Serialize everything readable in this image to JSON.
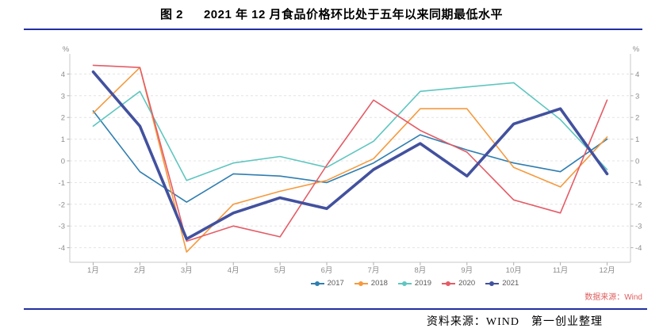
{
  "header": {
    "figure_label": "图 2",
    "title": "2021 年 12 月食品价格环比处于五年以来同期最低水平"
  },
  "chart_data": {
    "type": "line",
    "title": "2021 年 12 月食品价格环比处于五年以来同期最低水平",
    "ylabel_left": "%",
    "ylabel_right": "%",
    "categories": [
      "1月",
      "2月",
      "3月",
      "4月",
      "5月",
      "6月",
      "7月",
      "8月",
      "9月",
      "10月",
      "11月",
      "12月"
    ],
    "y_ticks": [
      4,
      3,
      2,
      1,
      0,
      -1,
      -2,
      -3,
      -4
    ],
    "ylim": [
      -4.7,
      5.0
    ],
    "grid": "horizontal dashed",
    "legend_position": "bottom center",
    "series": [
      {
        "name": "2017",
        "color": "#2f7eb0",
        "line_width": 1.6,
        "values": [
          2.3,
          -0.5,
          -1.9,
          -0.6,
          -0.7,
          -1.0,
          -0.1,
          1.2,
          0.5,
          -0.1,
          -0.5,
          1.0
        ]
      },
      {
        "name": "2018",
        "color": "#f59a3e",
        "line_width": 1.6,
        "values": [
          2.2,
          4.3,
          -4.2,
          -2.0,
          -1.4,
          -0.9,
          0.1,
          2.4,
          2.4,
          -0.3,
          -1.2,
          1.1
        ]
      },
      {
        "name": "2019",
        "color": "#5fc6c0",
        "line_width": 1.6,
        "values": [
          1.6,
          3.2,
          -0.9,
          -0.1,
          0.2,
          -0.3,
          0.9,
          3.2,
          3.4,
          3.6,
          1.9,
          -0.4
        ]
      },
      {
        "name": "2020",
        "color": "#e45c66",
        "line_width": 1.6,
        "values": [
          4.4,
          4.3,
          -3.7,
          -3.0,
          -3.5,
          -0.2,
          2.8,
          1.4,
          0.4,
          -1.8,
          -2.4,
          2.8
        ]
      },
      {
        "name": "2021",
        "color": "#42519e",
        "line_width": 3.6,
        "values": [
          4.1,
          1.6,
          -3.6,
          -2.4,
          -1.7,
          -2.2,
          -0.4,
          0.8,
          -0.7,
          1.7,
          2.4,
          -0.6
        ]
      }
    ],
    "source_note": "数据来源：Wind"
  },
  "footer": {
    "source": "资料来源：WIND　第一创业整理"
  },
  "colors": {
    "rule": "#2230a0",
    "grid": "#e4e4e4",
    "axis": "#c9c9c9",
    "tick": "#b0b0b0",
    "tick_label": "#8c8c8c",
    "wind_note": "#df5f5f"
  }
}
